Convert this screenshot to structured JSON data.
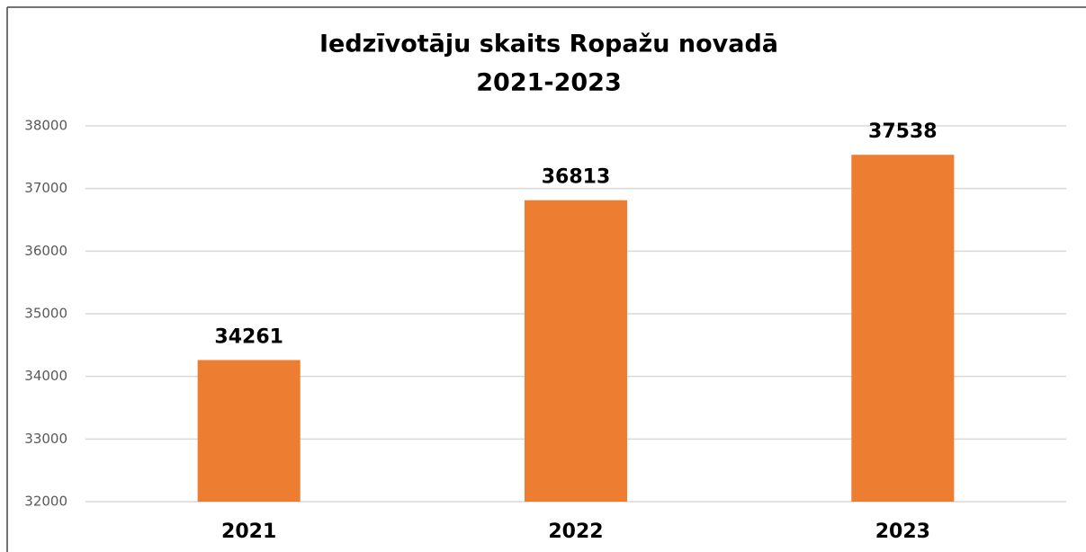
{
  "chart_data": {
    "type": "bar",
    "title": "Iedzīvotāju skaits Ropažu novadā",
    "subtitle": "2021-2023",
    "categories": [
      "2021",
      "2022",
      "2023"
    ],
    "values": [
      34261,
      36813,
      37538
    ],
    "color": "#ed7d31",
    "ylim": [
      32000,
      38000
    ],
    "yticks": [
      32000,
      33000,
      34000,
      35000,
      36000,
      37000,
      38000
    ],
    "grid": true
  }
}
